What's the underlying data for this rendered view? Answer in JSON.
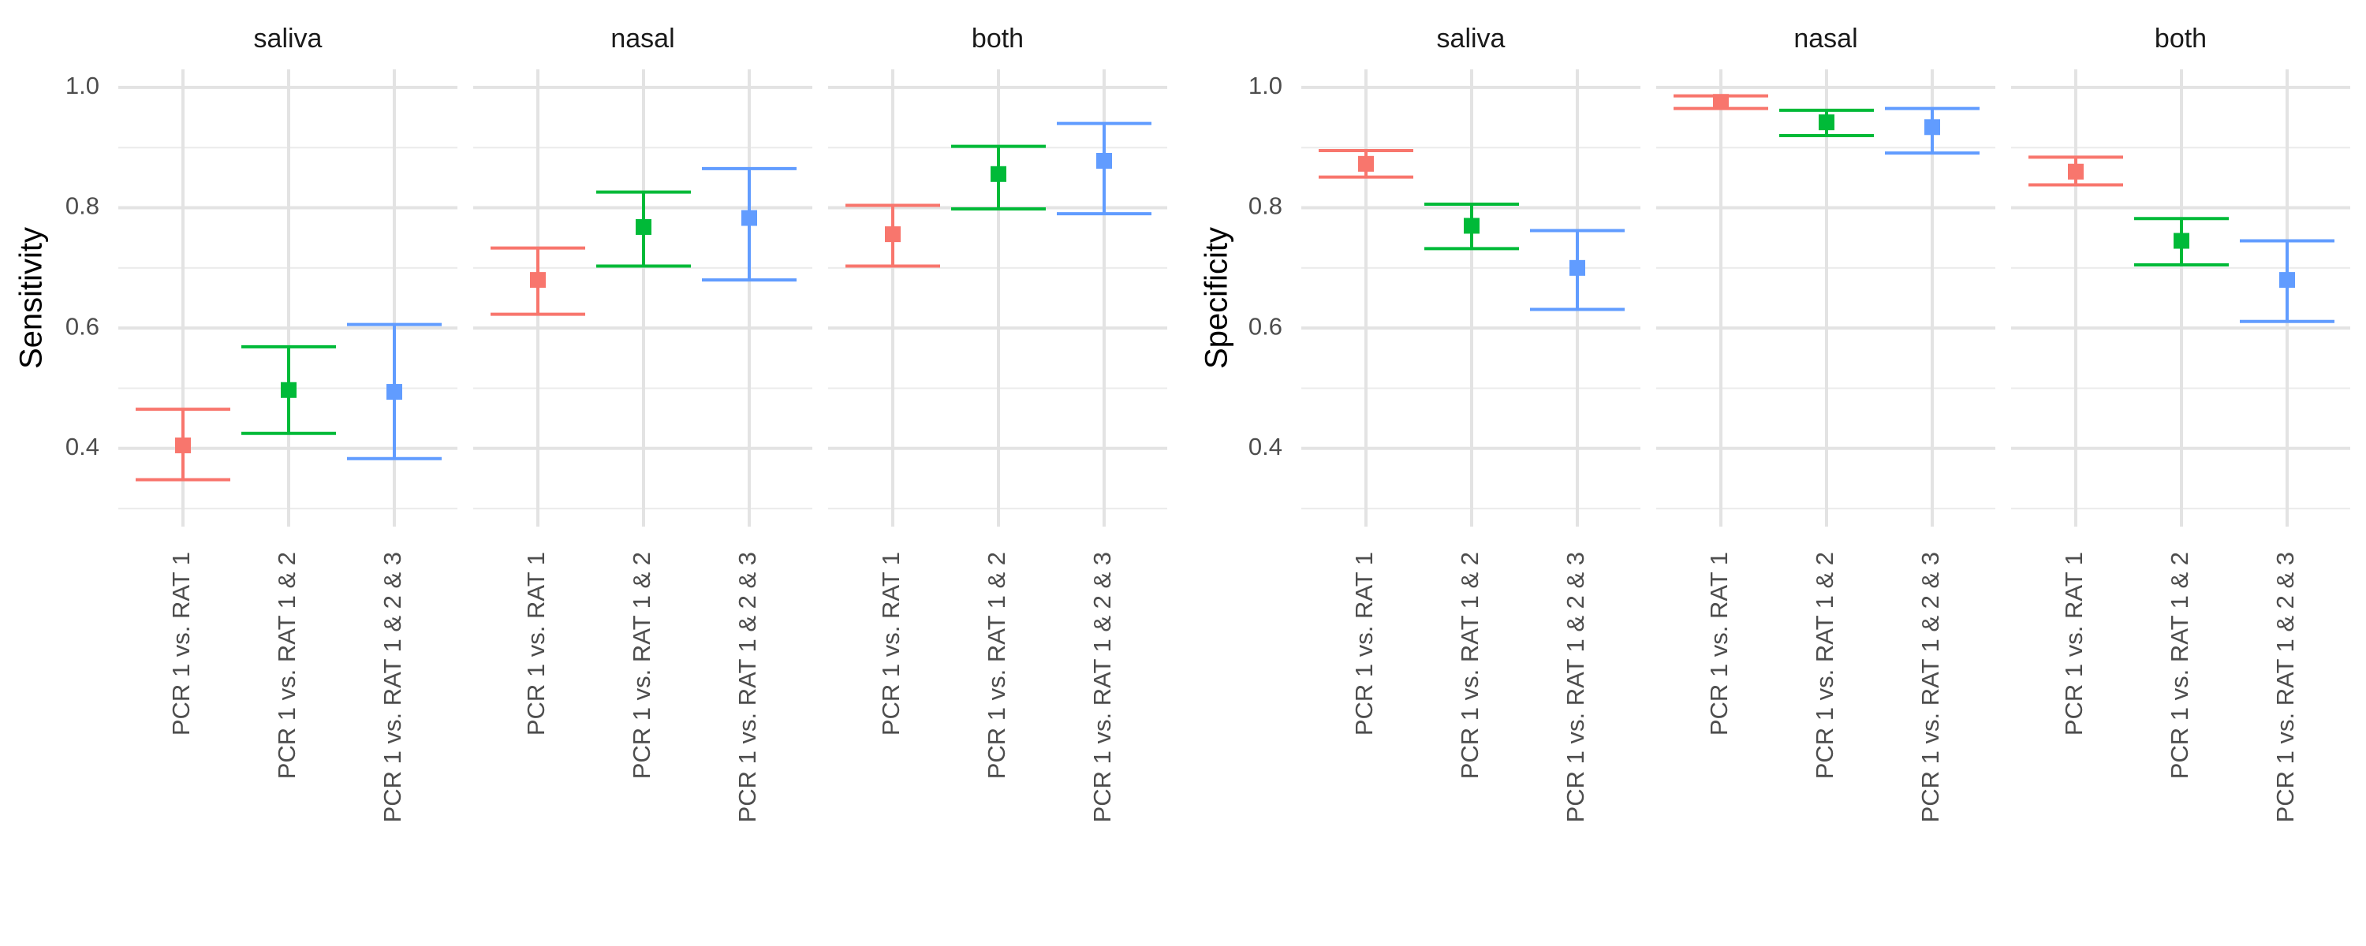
{
  "chart_data": [
    {
      "type": "errorbar",
      "ylabel": "Sensitivity",
      "ylim": [
        0.27,
        1.03
      ],
      "yticks": [
        0.4,
        0.6,
        0.8,
        1.0
      ],
      "ytick_labels": [
        "0.4",
        "0.6",
        "0.8",
        "1.0"
      ],
      "grid": true,
      "categories": [
        "PCR 1 vs. RAT 1",
        "PCR 1 vs. RAT 1 & 2",
        "PCR 1 vs. RAT 1 & 2 & 3"
      ],
      "colors": [
        "#F8766D",
        "#00BA38",
        "#619CFF"
      ],
      "panels": [
        {
          "name": "saliva",
          "values": [
            0.405,
            0.497,
            0.494
          ],
          "lower": [
            0.348,
            0.425,
            0.383
          ],
          "upper": [
            0.465,
            0.569,
            0.606
          ]
        },
        {
          "name": "nasal",
          "values": [
            0.68,
            0.768,
            0.783
          ],
          "lower": [
            0.623,
            0.703,
            0.68
          ],
          "upper": [
            0.733,
            0.826,
            0.865
          ]
        },
        {
          "name": "both",
          "values": [
            0.756,
            0.856,
            0.878
          ],
          "lower": [
            0.703,
            0.798,
            0.79
          ],
          "upper": [
            0.804,
            0.902,
            0.94
          ]
        }
      ]
    },
    {
      "type": "errorbar",
      "ylabel": "Specificity",
      "ylim": [
        0.27,
        1.03
      ],
      "yticks": [
        0.4,
        0.6,
        0.8,
        1.0
      ],
      "ytick_labels": [
        "0.4",
        "0.6",
        "0.8",
        "1.0"
      ],
      "grid": true,
      "categories": [
        "PCR 1 vs. RAT 1",
        "PCR 1 vs. RAT 1 & 2",
        "PCR 1 vs. RAT 1 & 2 & 3"
      ],
      "colors": [
        "#F8766D",
        "#00BA38",
        "#619CFF"
      ],
      "panels": [
        {
          "name": "saliva",
          "values": [
            0.873,
            0.77,
            0.7
          ],
          "lower": [
            0.851,
            0.732,
            0.631
          ],
          "upper": [
            0.895,
            0.806,
            0.762
          ]
        },
        {
          "name": "nasal",
          "values": [
            0.976,
            0.942,
            0.934
          ],
          "lower": [
            0.965,
            0.92,
            0.891
          ],
          "upper": [
            0.986,
            0.962,
            0.965
          ]
        },
        {
          "name": "both",
          "values": [
            0.86,
            0.745,
            0.68
          ],
          "lower": [
            0.838,
            0.705,
            0.611
          ],
          "upper": [
            0.884,
            0.782,
            0.745
          ]
        }
      ]
    }
  ]
}
